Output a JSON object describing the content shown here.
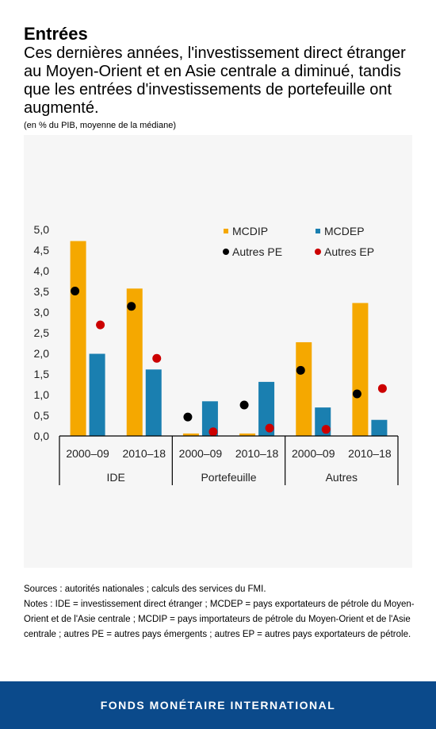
{
  "header": {
    "title": "Entrées",
    "subtitle": "Ces dernières années, l'investissement direct étranger au Moyen-Orient et en Asie centrale a diminué, tandis que les entrées d'investissements de portefeuille ont augmenté.",
    "unit": "(en % du PIB, moyenne de la médiane)"
  },
  "chart_data": {
    "type": "bar",
    "ylim": [
      0,
      5
    ],
    "yticks": [
      "0,0",
      "0,5",
      "1,0",
      "1,5",
      "2,0",
      "2,5",
      "3,0",
      "3,5",
      "4,0",
      "4,5",
      "5,0"
    ],
    "groups": [
      "IDE",
      "Portefeuille",
      "Autres"
    ],
    "categories": [
      "2000–09",
      "2010–18",
      "2000–09",
      "2010–18",
      "2000–09",
      "2010–18"
    ],
    "bar_series": [
      {
        "name": "MCDIP",
        "color": "#f5a800",
        "values": [
          4.72,
          3.57,
          0.06,
          0.06,
          2.27,
          3.22
        ]
      },
      {
        "name": "MCDEP",
        "color": "#1a7fb0",
        "values": [
          1.99,
          1.61,
          0.84,
          1.31,
          0.69,
          0.39
        ]
      }
    ],
    "dot_series": [
      {
        "name": "Autres PE",
        "color": "#000000",
        "values": [
          3.51,
          3.14,
          0.46,
          0.75,
          1.59,
          1.02
        ]
      },
      {
        "name": "Autres EP",
        "color": "#cc0000",
        "values": [
          2.69,
          1.88,
          0.1,
          0.19,
          0.16,
          1.15
        ]
      }
    ],
    "legend": [
      "MCDIP",
      "MCDEP",
      "Autres PE",
      "Autres EP"
    ]
  },
  "notes": {
    "sources": "Sources  : autorités nationales ; calculs des services du FMI.",
    "text": "Notes : IDE = investissement direct étranger ; MCDEP = pays exportateurs de pétrole du Moyen-Orient et de l'Asie centrale ; MCDIP = pays importateurs de pétrole du Moyen-Orient et de l'Asie centrale ; autres PE = autres pays émergents ; autres EP = autres pays exportateurs de pétrole."
  },
  "footer": {
    "label": "FONDS MONÉTAIRE INTERNATIONAL"
  }
}
